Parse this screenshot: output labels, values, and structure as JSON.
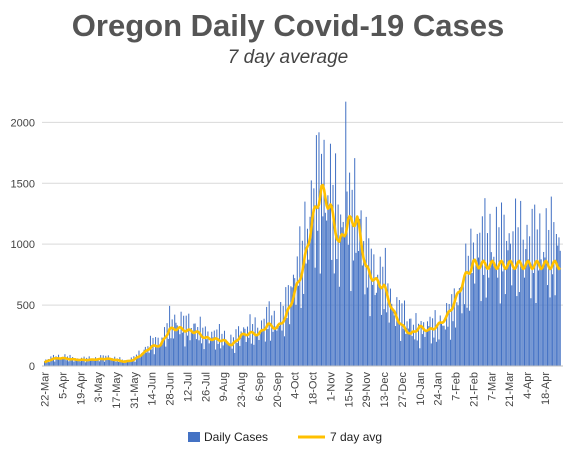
{
  "chart_data": {
    "type": "bar",
    "title": "Oregon Daily Covid-19 Cases",
    "subtitle": "7 day average",
    "ylim": [
      0,
      2200
    ],
    "yticks": [
      0,
      500,
      1000,
      1500,
      2000
    ],
    "x_tick_labels": [
      "22-Mar",
      "5-Apr",
      "19-Apr",
      "3-May",
      "17-May",
      "31-May",
      "14-Jun",
      "28-Jun",
      "12-Jul",
      "26-Jul",
      "9-Aug",
      "23-Aug",
      "6-Sep",
      "20-Sep",
      "4-Oct",
      "18-Oct",
      "1-Nov",
      "15-Nov",
      "29-Nov",
      "13-Dec",
      "27-Dec",
      "10-Jan",
      "24-Jan",
      "7-Feb",
      "21-Feb",
      "7-Mar",
      "21-Mar",
      "4-Apr",
      "18-Apr"
    ],
    "legend": {
      "position": "bottom"
    },
    "series": [
      {
        "name": "Daily Cases",
        "type": "bar",
        "color": "#4472C4",
        "date_range": [
          "22-Mar",
          "30-Apr"
        ],
        "weekly_values": [
          40,
          65,
          75,
          60,
          55,
          55,
          60,
          70,
          55,
          40,
          60,
          110,
          180,
          190,
          330,
          340,
          310,
          300,
          240,
          240,
          230,
          180,
          270,
          290,
          280,
          380,
          330,
          450,
          700,
          880,
          1300,
          1450,
          1350,
          1050,
          1150,
          1200,
          850,
          700,
          680,
          450,
          400,
          330,
          270,
          330,
          300,
          380,
          480,
          650,
          880,
          950
        ],
        "peak": {
          "date": "13-Nov",
          "value": 2170
        }
      },
      {
        "name": "7 day avg",
        "type": "line",
        "color": "#FFC000",
        "weekly_values": [
          30,
          60,
          65,
          55,
          50,
          50,
          55,
          60,
          50,
          35,
          50,
          100,
          160,
          170,
          300,
          310,
          290,
          280,
          230,
          220,
          210,
          170,
          250,
          270,
          260,
          340,
          310,
          400,
          600,
          820,
          1200,
          1450,
          1300,
          1000,
          1180,
          1200,
          800,
          700,
          650,
          450,
          330,
          260,
          320,
          290,
          330,
          400,
          540,
          720,
          840,
          830
        ]
      }
    ]
  }
}
